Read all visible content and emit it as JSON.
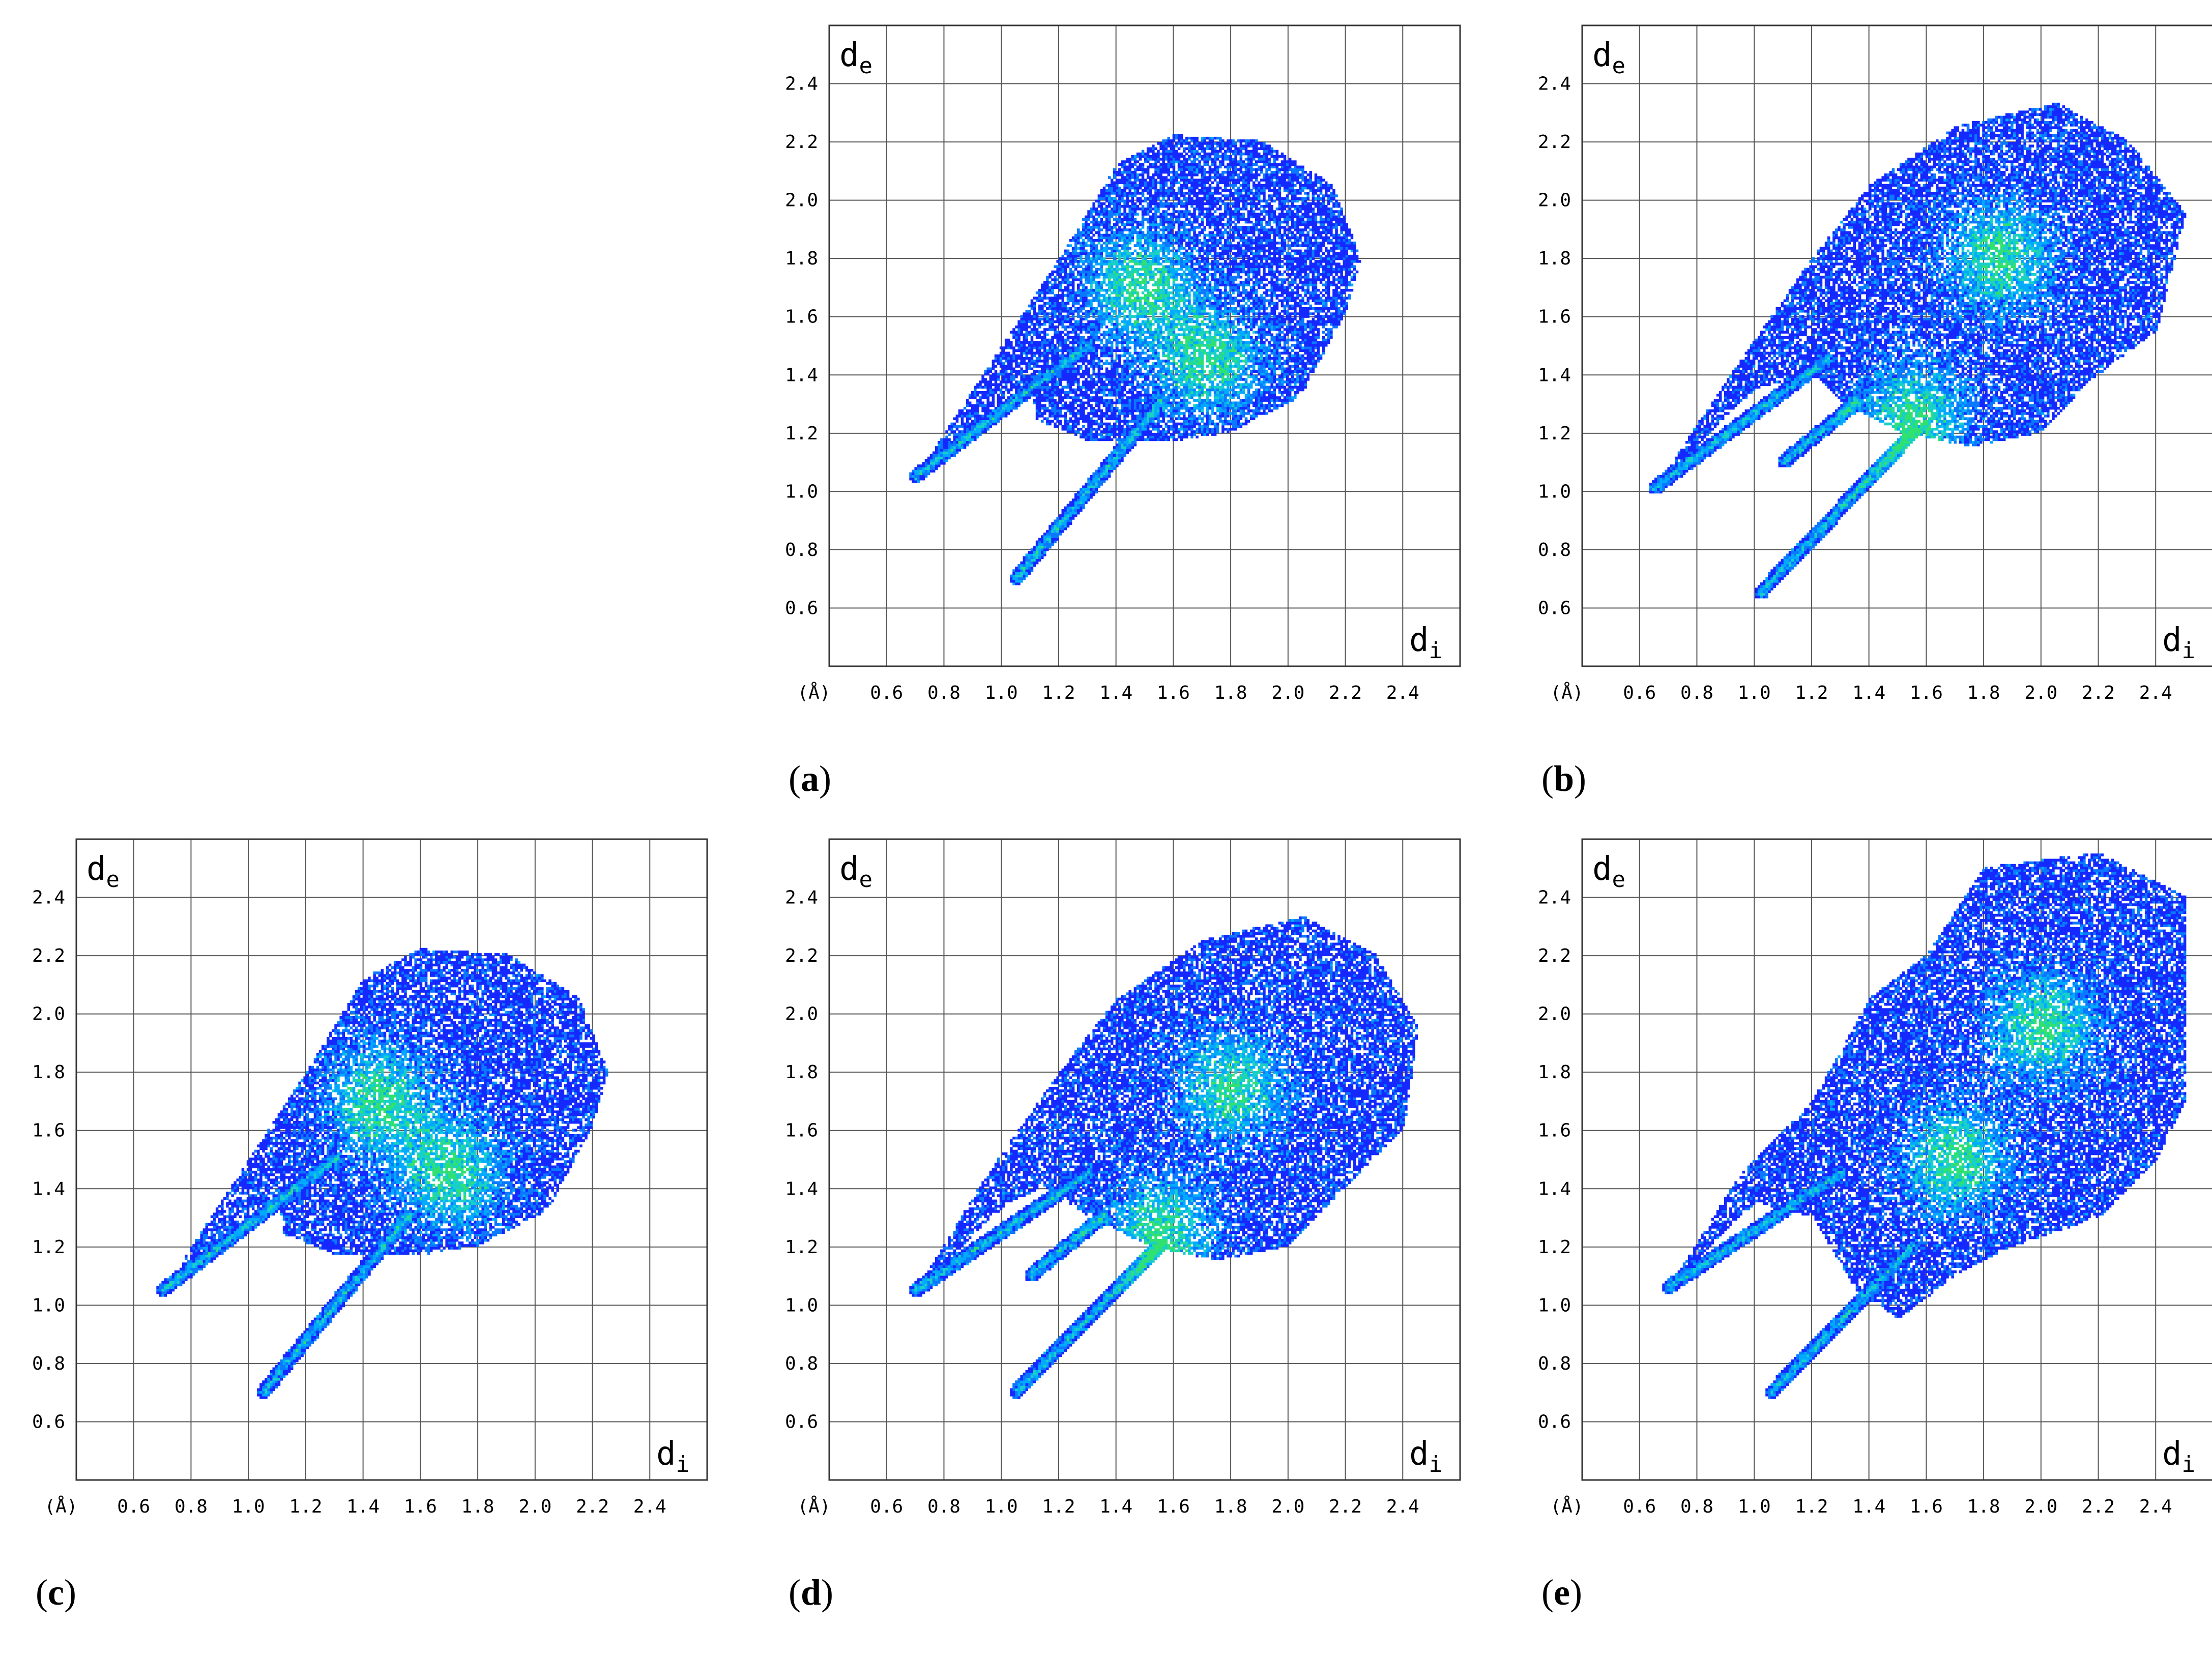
{
  "chart_data": [
    {
      "type": "heatmap",
      "label": "a",
      "xlabel": "d",
      "xlabel_sub": "i",
      "ylabel": "d",
      "ylabel_sub": "e",
      "unit_label": "(Å)",
      "xlim": [
        0.4,
        2.6
      ],
      "ylim": [
        0.4,
        2.6
      ],
      "xticks": [
        "0.6",
        "0.8",
        "1.0",
        "1.2",
        "1.4",
        "1.6",
        "1.8",
        "2.0",
        "2.2",
        "2.4"
      ],
      "yticks": [
        "0.6",
        "0.8",
        "1.0",
        "1.2",
        "1.4",
        "1.6",
        "1.8",
        "2.0",
        "2.2",
        "2.4"
      ],
      "grid": true,
      "hotspots": [
        [
          1.48,
          1.7
        ],
        [
          1.72,
          1.45
        ]
      ],
      "spikes": [
        [
          0.7,
          1.05,
          1.3,
          1.5
        ],
        [
          1.05,
          0.7,
          1.55,
          1.3
        ]
      ],
      "envelope": [
        [
          0.7,
          1.05
        ],
        [
          1.02,
          1.33
        ],
        [
          1.1,
          1.37
        ],
        [
          1.12,
          1.24
        ],
        [
          1.3,
          1.17
        ],
        [
          1.6,
          1.17
        ],
        [
          1.8,
          1.2
        ],
        [
          2.0,
          1.3
        ],
        [
          2.05,
          1.34
        ],
        [
          2.2,
          1.62
        ],
        [
          2.25,
          1.8
        ],
        [
          2.15,
          2.05
        ],
        [
          1.9,
          2.2
        ],
        [
          1.6,
          2.22
        ],
        [
          1.4,
          2.12
        ],
        [
          1.2,
          1.8
        ],
        [
          1.0,
          1.5
        ]
      ]
    },
    {
      "type": "heatmap",
      "label": "b",
      "xlabel": "d",
      "xlabel_sub": "i",
      "ylabel": "d",
      "ylabel_sub": "e",
      "unit_label": "(Å)",
      "xlim": [
        0.4,
        2.6
      ],
      "ylim": [
        0.4,
        2.6
      ],
      "xticks": [
        "0.6",
        "0.8",
        "1.0",
        "1.2",
        "1.4",
        "1.6",
        "1.8",
        "2.0",
        "2.2",
        "2.4"
      ],
      "yticks": [
        "0.6",
        "0.8",
        "1.0",
        "1.2",
        "1.4",
        "1.6",
        "1.8",
        "2.0",
        "2.2",
        "2.4"
      ],
      "grid": true,
      "hotspots": [
        [
          1.55,
          1.25
        ],
        [
          1.85,
          1.8
        ]
      ],
      "spikes": [
        [
          0.65,
          1.01,
          1.25,
          1.45
        ],
        [
          1.02,
          0.65,
          1.55,
          1.2
        ],
        [
          1.1,
          1.1,
          1.35,
          1.3
        ]
      ],
      "envelope": [
        [
          0.65,
          1.01
        ],
        [
          1.0,
          1.35
        ],
        [
          1.2,
          1.4
        ],
        [
          1.3,
          1.3
        ],
        [
          1.5,
          1.2
        ],
        [
          1.75,
          1.15
        ],
        [
          2.0,
          1.2
        ],
        [
          2.2,
          1.4
        ],
        [
          2.4,
          1.55
        ],
        [
          2.5,
          1.95
        ],
        [
          2.3,
          2.2
        ],
        [
          2.05,
          2.33
        ],
        [
          1.7,
          2.25
        ],
        [
          1.4,
          2.05
        ],
        [
          1.2,
          1.8
        ],
        [
          0.95,
          1.45
        ]
      ]
    },
    {
      "type": "heatmap",
      "label": "c",
      "xlabel": "d",
      "xlabel_sub": "i",
      "ylabel": "d",
      "ylabel_sub": "e",
      "unit_label": "(Å)",
      "xlim": [
        0.4,
        2.6
      ],
      "ylim": [
        0.4,
        2.6
      ],
      "xticks": [
        "0.6",
        "0.8",
        "1.0",
        "1.2",
        "1.4",
        "1.6",
        "1.8",
        "2.0",
        "2.2",
        "2.4"
      ],
      "yticks": [
        "0.6",
        "0.8",
        "1.0",
        "1.2",
        "1.4",
        "1.6",
        "1.8",
        "2.0",
        "2.2",
        "2.4"
      ],
      "grid": true,
      "hotspots": [
        [
          1.45,
          1.7
        ],
        [
          1.7,
          1.45
        ]
      ],
      "spikes": [
        [
          0.7,
          1.05,
          1.3,
          1.5
        ],
        [
          1.05,
          0.7,
          1.55,
          1.3
        ]
      ],
      "envelope": [
        [
          0.7,
          1.05
        ],
        [
          1.02,
          1.33
        ],
        [
          1.1,
          1.37
        ],
        [
          1.12,
          1.24
        ],
        [
          1.3,
          1.17
        ],
        [
          1.6,
          1.17
        ],
        [
          1.8,
          1.2
        ],
        [
          2.0,
          1.3
        ],
        [
          2.05,
          1.34
        ],
        [
          2.2,
          1.62
        ],
        [
          2.25,
          1.8
        ],
        [
          2.15,
          2.05
        ],
        [
          1.9,
          2.2
        ],
        [
          1.6,
          2.22
        ],
        [
          1.4,
          2.12
        ],
        [
          1.2,
          1.8
        ],
        [
          1.0,
          1.5
        ]
      ]
    },
    {
      "type": "heatmap",
      "label": "d",
      "xlabel": "d",
      "xlabel_sub": "i",
      "ylabel": "d",
      "ylabel_sub": "e",
      "unit_label": "(Å)",
      "xlim": [
        0.4,
        2.6
      ],
      "ylim": [
        0.4,
        2.6
      ],
      "xticks": [
        "0.6",
        "0.8",
        "1.0",
        "1.2",
        "1.4",
        "1.6",
        "1.8",
        "2.0",
        "2.2",
        "2.4"
      ],
      "yticks": [
        "0.6",
        "0.8",
        "1.0",
        "1.2",
        "1.4",
        "1.6",
        "1.8",
        "2.0",
        "2.2",
        "2.4"
      ],
      "grid": true,
      "hotspots": [
        [
          1.55,
          1.25
        ],
        [
          1.8,
          1.75
        ]
      ],
      "spikes": [
        [
          0.7,
          1.05,
          1.3,
          1.45
        ],
        [
          1.05,
          0.7,
          1.55,
          1.2
        ],
        [
          1.1,
          1.1,
          1.35,
          1.3
        ]
      ],
      "envelope": [
        [
          0.7,
          1.05
        ],
        [
          1.02,
          1.35
        ],
        [
          1.15,
          1.4
        ],
        [
          1.3,
          1.3
        ],
        [
          1.5,
          1.2
        ],
        [
          1.75,
          1.15
        ],
        [
          2.0,
          1.2
        ],
        [
          2.2,
          1.4
        ],
        [
          2.4,
          1.6
        ],
        [
          2.45,
          1.95
        ],
        [
          2.3,
          2.2
        ],
        [
          2.05,
          2.33
        ],
        [
          1.7,
          2.25
        ],
        [
          1.4,
          2.05
        ],
        [
          1.2,
          1.8
        ],
        [
          0.95,
          1.45
        ]
      ]
    },
    {
      "type": "heatmap",
      "label": "e",
      "xlabel": "d",
      "xlabel_sub": "i",
      "ylabel": "d",
      "ylabel_sub": "e",
      "unit_label": "(Å)",
      "xlim": [
        0.4,
        2.6
      ],
      "ylim": [
        0.4,
        2.6
      ],
      "xticks": [
        "0.6",
        "0.8",
        "1.0",
        "1.2",
        "1.4",
        "1.6",
        "1.8",
        "2.0",
        "2.2",
        "2.4"
      ],
      "yticks": [
        "0.6",
        "0.8",
        "1.0",
        "1.2",
        "1.4",
        "1.6",
        "1.8",
        "2.0",
        "2.2",
        "2.4"
      ],
      "grid": true,
      "hotspots": [
        [
          1.7,
          1.5
        ],
        [
          2.0,
          1.95
        ]
      ],
      "spikes": [
        [
          0.7,
          1.06,
          1.3,
          1.45
        ],
        [
          1.06,
          0.7,
          1.55,
          1.2
        ]
      ],
      "envelope": [
        [
          0.7,
          1.06
        ],
        [
          1.0,
          1.35
        ],
        [
          1.2,
          1.3
        ],
        [
          1.35,
          1.05
        ],
        [
          1.5,
          0.95
        ],
        [
          1.7,
          1.1
        ],
        [
          1.9,
          1.2
        ],
        [
          2.2,
          1.3
        ],
        [
          2.4,
          1.5
        ],
        [
          2.5,
          1.7
        ],
        [
          2.5,
          2.4
        ],
        [
          2.2,
          2.55
        ],
        [
          1.8,
          2.5
        ],
        [
          1.6,
          2.2
        ],
        [
          1.4,
          2.05
        ],
        [
          1.2,
          1.7
        ],
        [
          0.95,
          1.45
        ]
      ]
    }
  ],
  "colors": {
    "density_low": "#1428ff",
    "density_mid": "#00aaff",
    "density_high": "#30e070",
    "grid": "#555555"
  }
}
